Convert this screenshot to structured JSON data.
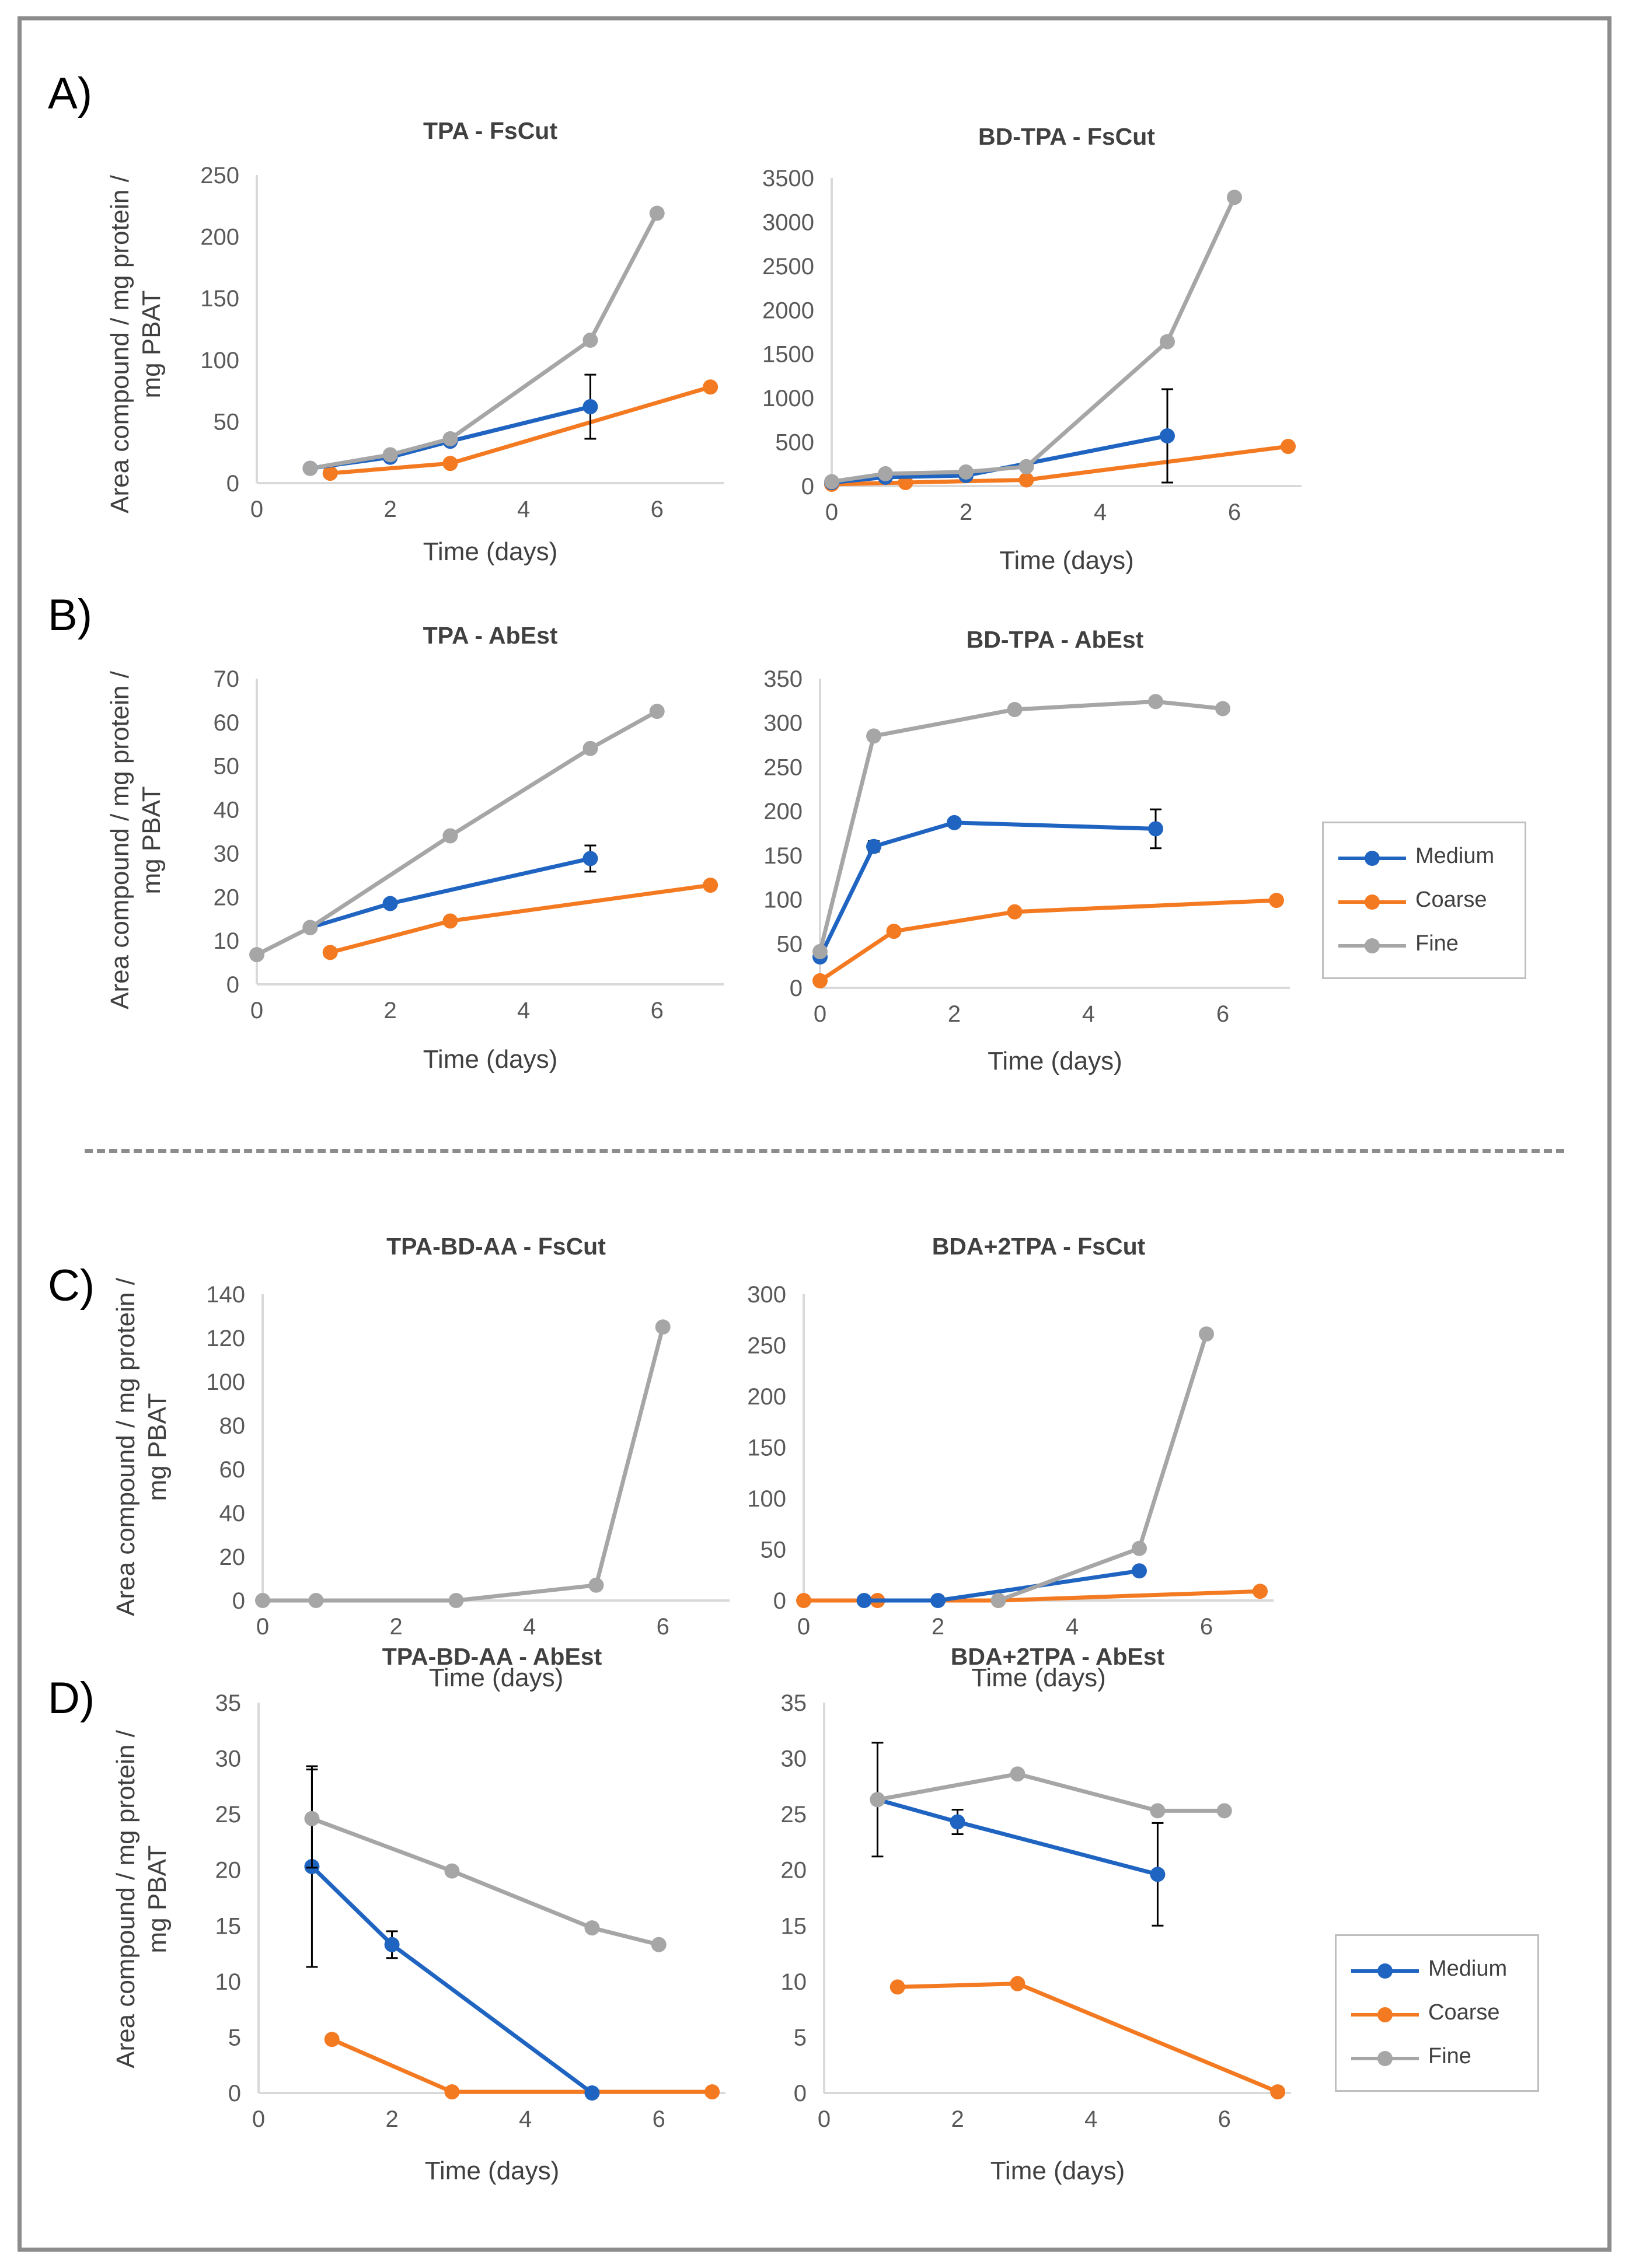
{
  "panel_labels": [
    "A)",
    "B)",
    "C)",
    "D)"
  ],
  "colors": {
    "Medium": "#1f64c1",
    "Coarse": "#f47a22",
    "Fine": "#a6a6a6",
    "axis": "#d9d9d9",
    "text": "#595959",
    "title": "#404040"
  },
  "legend": {
    "items": [
      "Medium",
      "Coarse",
      "Fine"
    ]
  },
  "chart_data": [
    {
      "type": "line",
      "title": "TPA - FsCut",
      "xlabel": "Time (days)",
      "ylabel": "Area compound / mg protein / mg PBAT",
      "xlim": [
        0,
        7
      ],
      "ylim": [
        0,
        250
      ],
      "xticks": [
        0,
        2,
        4,
        6
      ],
      "yticks": [
        0,
        50,
        100,
        150,
        200,
        250
      ],
      "series": [
        {
          "name": "Medium",
          "points": [
            [
              0.8,
              12
            ],
            [
              2,
              21
            ],
            [
              2.9,
              34
            ],
            [
              5,
              62
            ]
          ],
          "errors": [
            0,
            0,
            0,
            26
          ]
        },
        {
          "name": "Coarse",
          "points": [
            [
              1.1,
              8
            ],
            [
              2.9,
              16
            ],
            [
              6.8,
              78
            ]
          ]
        },
        {
          "name": "Fine",
          "points": [
            [
              0.8,
              12
            ],
            [
              2,
              23
            ],
            [
              2.9,
              36
            ],
            [
              5,
              116
            ],
            [
              6,
              219
            ]
          ]
        }
      ]
    },
    {
      "type": "line",
      "title": "BD-TPA - FsCut",
      "xlabel": "Time (days)",
      "ylabel": "",
      "xlim": [
        0,
        7
      ],
      "ylim": [
        0,
        3500
      ],
      "xticks": [
        0,
        2,
        4,
        6
      ],
      "yticks": [
        0,
        500,
        1000,
        1500,
        2000,
        2500,
        3000,
        3500
      ],
      "series": [
        {
          "name": "Medium",
          "points": [
            [
              0,
              40
            ],
            [
              0.8,
              100
            ],
            [
              2,
              120
            ],
            [
              5,
              570
            ]
          ],
          "errors": [
            0,
            0,
            0,
            530
          ]
        },
        {
          "name": "Coarse",
          "points": [
            [
              0,
              20
            ],
            [
              1.1,
              40
            ],
            [
              2.9,
              70
            ],
            [
              6.8,
              450
            ]
          ]
        },
        {
          "name": "Fine",
          "points": [
            [
              0,
              50
            ],
            [
              0.8,
              140
            ],
            [
              2,
              160
            ],
            [
              2.9,
              220
            ],
            [
              5,
              1640
            ],
            [
              6,
              3280
            ]
          ]
        }
      ]
    },
    {
      "type": "line",
      "title": "TPA - AbEst",
      "xlabel": "Time (days)",
      "ylabel": "Area compound / mg protein / mg PBAT",
      "xlim": [
        0,
        7
      ],
      "ylim": [
        0,
        70
      ],
      "xticks": [
        0,
        2,
        4,
        6
      ],
      "yticks": [
        0,
        10,
        20,
        30,
        40,
        50,
        60,
        70
      ],
      "series": [
        {
          "name": "Medium",
          "points": [
            [
              0.8,
              13
            ],
            [
              2,
              18.5
            ],
            [
              5,
              28.8
            ]
          ],
          "errors": [
            0,
            0,
            3
          ]
        },
        {
          "name": "Coarse",
          "points": [
            [
              1.1,
              7.3
            ],
            [
              2.9,
              14.5
            ],
            [
              6.8,
              22.7
            ]
          ]
        },
        {
          "name": "Fine",
          "points": [
            [
              0,
              6.8
            ],
            [
              0.8,
              13
            ],
            [
              2.9,
              34
            ],
            [
              5,
              54
            ],
            [
              6,
              62.5
            ]
          ]
        }
      ]
    },
    {
      "type": "line",
      "title": "BD-TPA - AbEst",
      "xlabel": "Time (days)",
      "ylabel": "",
      "xlim": [
        0,
        7
      ],
      "ylim": [
        0,
        350
      ],
      "xticks": [
        0,
        2,
        4,
        6
      ],
      "yticks": [
        0,
        50,
        100,
        150,
        200,
        250,
        300,
        350
      ],
      "series": [
        {
          "name": "Medium",
          "points": [
            [
              0,
              35
            ],
            [
              0.8,
              160
            ],
            [
              2,
              187
            ],
            [
              5,
              180
            ]
          ],
          "errors": [
            0,
            6,
            0,
            22
          ]
        },
        {
          "name": "Coarse",
          "points": [
            [
              0,
              8
            ],
            [
              1.1,
              64
            ],
            [
              2.9,
              86
            ],
            [
              6.8,
              99
            ]
          ]
        },
        {
          "name": "Fine",
          "points": [
            [
              0,
              41
            ],
            [
              0.8,
              285
            ],
            [
              2.9,
              315
            ],
            [
              5,
              324
            ],
            [
              6,
              316
            ]
          ]
        }
      ]
    },
    {
      "type": "line",
      "title": "TPA-BD-AA - FsCut",
      "xlabel": "Time (days)",
      "ylabel": "Area compound / mg protein / mg PBAT",
      "xlim": [
        0,
        7
      ],
      "ylim": [
        0,
        140
      ],
      "xticks": [
        0,
        2,
        4,
        6
      ],
      "yticks": [
        0,
        20,
        40,
        60,
        80,
        100,
        120,
        140
      ],
      "series": [
        {
          "name": "Fine",
          "points": [
            [
              0,
              0
            ],
            [
              0.8,
              0
            ],
            [
              2.9,
              0
            ],
            [
              5,
              7
            ],
            [
              6,
              125
            ]
          ]
        }
      ]
    },
    {
      "type": "line",
      "title": "BDA+2TPA - FsCut",
      "xlabel": "Time (days)",
      "ylabel": "",
      "xlim": [
        0,
        7
      ],
      "ylim": [
        0,
        300
      ],
      "xticks": [
        0,
        2,
        4,
        6
      ],
      "yticks": [
        0,
        50,
        100,
        150,
        200,
        250,
        300
      ],
      "series": [
        {
          "name": "Medium",
          "points": [
            [
              0.9,
              0
            ],
            [
              2,
              0
            ],
            [
              5,
              29
            ]
          ]
        },
        {
          "name": "Coarse",
          "points": [
            [
              0,
              0
            ],
            [
              1.1,
              0
            ],
            [
              2.9,
              0
            ],
            [
              6.8,
              9
            ]
          ]
        },
        {
          "name": "Fine",
          "points": [
            [
              2.9,
              0
            ],
            [
              5,
              51
            ],
            [
              6,
              261
            ]
          ]
        }
      ]
    },
    {
      "type": "line",
      "title": "TPA-BD-AA - AbEst",
      "xlabel": "Time (days)",
      "ylabel": "Area compound / mg protein / mg PBAT",
      "xlim": [
        0,
        7
      ],
      "ylim": [
        0,
        35
      ],
      "xticks": [
        0,
        2,
        4,
        6
      ],
      "yticks": [
        0,
        5,
        10,
        15,
        20,
        25,
        30,
        35
      ],
      "series": [
        {
          "name": "Medium",
          "points": [
            [
              0.8,
              20.3
            ],
            [
              2,
              13.3
            ],
            [
              5,
              0
            ]
          ],
          "errors": [
            9,
            1.2,
            0
          ]
        },
        {
          "name": "Coarse",
          "points": [
            [
              1.1,
              4.8
            ],
            [
              2.9,
              0.1
            ],
            [
              6.8,
              0.1
            ]
          ]
        },
        {
          "name": "Fine",
          "points": [
            [
              0.8,
              24.6
            ],
            [
              2.9,
              19.9
            ],
            [
              5,
              14.8
            ],
            [
              6,
              13.3
            ]
          ],
          "errors": [
            4.4,
            0,
            0,
            0
          ]
        }
      ]
    },
    {
      "type": "line",
      "title": "BDA+2TPA - AbEst",
      "xlabel": "Time (days)",
      "ylabel": "",
      "xlim": [
        0,
        7
      ],
      "ylim": [
        0,
        35
      ],
      "xticks": [
        0,
        2,
        4,
        6
      ],
      "yticks": [
        0,
        5,
        10,
        15,
        20,
        25,
        30,
        35
      ],
      "series": [
        {
          "name": "Medium",
          "points": [
            [
              0.8,
              26.3
            ],
            [
              2,
              24.3
            ],
            [
              5,
              19.6
            ]
          ],
          "errors": [
            5.1,
            1.1,
            4.6
          ]
        },
        {
          "name": "Coarse",
          "points": [
            [
              1.1,
              9.5
            ],
            [
              2.9,
              9.8
            ],
            [
              6.8,
              0.1
            ]
          ]
        },
        {
          "name": "Fine",
          "points": [
            [
              0.8,
              26.3
            ],
            [
              2.9,
              28.6
            ],
            [
              5,
              25.3
            ],
            [
              6,
              25.3
            ]
          ]
        }
      ]
    }
  ]
}
